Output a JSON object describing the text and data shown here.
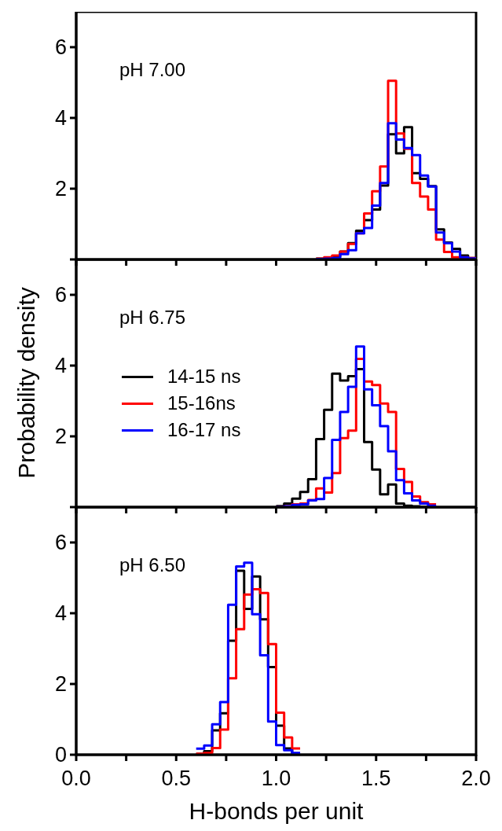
{
  "chart_data": [
    {
      "type": "histogram",
      "annotations": [
        "pH 7.00"
      ],
      "bins": [
        1.2,
        1.24,
        1.28,
        1.32,
        1.36,
        1.4,
        1.44,
        1.48,
        1.52,
        1.56,
        1.6,
        1.64,
        1.68,
        1.72,
        1.76,
        1.8,
        1.84,
        1.88,
        1.92,
        1.96,
        2.0
      ],
      "series": [
        {
          "color": "#000000",
          "values": [
            0.02,
            0.04,
            0.08,
            0.22,
            0.46,
            0.81,
            1.11,
            1.41,
            2.09,
            3.54,
            3.0,
            3.74,
            2.44,
            2.28,
            2.07,
            0.85,
            0.48,
            0.3,
            0.11,
            0.04
          ]
        },
        {
          "color": "#ff0000",
          "values": [
            0.02,
            0.06,
            0.11,
            0.22,
            0.44,
            0.74,
            1.3,
            1.93,
            2.63,
            5.05,
            3.56,
            3.13,
            2.16,
            1.78,
            1.41,
            0.56,
            0.21,
            0.06,
            0.06,
            0.04
          ]
        },
        {
          "color": "#0000ff",
          "values": [
            0.01,
            0.02,
            0.04,
            0.15,
            0.26,
            0.74,
            0.89,
            1.52,
            2.16,
            3.85,
            3.39,
            3.15,
            2.95,
            2.37,
            2.06,
            0.76,
            0.46,
            0.22,
            0.06,
            0.03
          ]
        }
      ],
      "xlim": [
        0,
        2
      ],
      "xticks": [
        {
          "value": 0,
          "label": null
        },
        {
          "value": 0.25,
          "label": null
        },
        {
          "value": 0.5,
          "label": null
        },
        {
          "value": 0.75,
          "label": null
        },
        {
          "value": 1,
          "label": null
        },
        {
          "value": 1.25,
          "label": null
        },
        {
          "value": 1.5,
          "label": null
        },
        {
          "value": 1.75,
          "label": null
        },
        {
          "value": 2,
          "label": null
        }
      ],
      "ylim": [
        0,
        7
      ],
      "yticks": [
        {
          "value": 0,
          "label": null
        },
        2,
        4,
        6
      ],
      "tick_labels": "y",
      "grid": false,
      "legend": false,
      "marker": "none",
      "line_style": "solid"
    },
    {
      "type": "histogram",
      "ylabel": "Probability density",
      "annotations": [
        "pH 6.75"
      ],
      "bins": [
        1.0,
        1.04,
        1.08,
        1.12,
        1.16,
        1.2,
        1.24,
        1.28,
        1.32,
        1.36,
        1.4,
        1.44,
        1.48,
        1.52,
        1.56,
        1.6,
        1.64,
        1.68,
        1.72,
        1.76,
        1.8
      ],
      "series": [
        {
          "name": "14-15 ns",
          "color": "#000000",
          "values": [
            0.03,
            0.1,
            0.24,
            0.43,
            0.79,
            1.92,
            2.75,
            3.77,
            3.58,
            3.7,
            3.9,
            1.84,
            1.06,
            0.36,
            0.64,
            0.1,
            0.04,
            0.02,
            0.01,
            0
          ]
        },
        {
          "name": "15-16ns",
          "color": "#ff0000",
          "values": [
            0,
            0.02,
            0.08,
            0.1,
            0.2,
            0.53,
            0.41,
            0.96,
            1.95,
            2.16,
            4.19,
            3.55,
            3.45,
            2.93,
            2.69,
            1.08,
            0.71,
            0.3,
            0.14,
            0.08
          ]
        },
        {
          "name": "16-17 ns",
          "color": "#0000ff",
          "values": [
            0,
            0.02,
            0.06,
            0.08,
            0.19,
            0.23,
            0.82,
            1.9,
            2.69,
            3.4,
            4.54,
            3.33,
            2.88,
            2.29,
            1.58,
            0.76,
            0.39,
            0.19,
            0.1,
            0.04
          ]
        }
      ],
      "xlim": [
        0,
        2
      ],
      "xticks": [
        {
          "value": 0,
          "label": null
        },
        {
          "value": 0.25,
          "label": null
        },
        {
          "value": 0.5,
          "label": null
        },
        {
          "value": 0.75,
          "label": null
        },
        {
          "value": 1,
          "label": null
        },
        {
          "value": 1.25,
          "label": null
        },
        {
          "value": 1.5,
          "label": null
        },
        {
          "value": 1.75,
          "label": null
        },
        {
          "value": 2,
          "label": null
        }
      ],
      "ylim": [
        0,
        7
      ],
      "yticks": [
        {
          "value": 0,
          "label": null
        },
        2,
        4,
        6
      ],
      "tick_labels": "y",
      "grid": false,
      "legend": "left",
      "marker": "none",
      "line_style": "solid"
    },
    {
      "type": "histogram",
      "xlabel": "H-bonds per unit",
      "annotations": [
        "pH 6.50"
      ],
      "bins": [
        0.6,
        0.64,
        0.68,
        0.72,
        0.76,
        0.8,
        0.84,
        0.88,
        0.92,
        0.96,
        1.0,
        1.04,
        1.08,
        1.12
      ],
      "series": [
        {
          "color": "#000000",
          "values": [
            0.02,
            0.1,
            0.69,
            1.17,
            3.22,
            5.2,
            4.12,
            5.04,
            3.83,
            2.48,
            0.82,
            0.18,
            0.04
          ]
        },
        {
          "color": "#ff0000",
          "values": [
            0.03,
            0.05,
            0.19,
            0.71,
            2.16,
            3.55,
            4.53,
            4.68,
            4.57,
            3.13,
            1.19,
            0.49,
            0.18
          ]
        },
        {
          "color": "#0000ff",
          "values": [
            0.17,
            0.26,
            0.86,
            1.49,
            4.24,
            5.32,
            5.43,
            3.97,
            2.81,
            0.94,
            0.27,
            0.13,
            0.05
          ]
        }
      ],
      "xlim": [
        0,
        2
      ],
      "xticks": [
        {
          "value": 0,
          "label": "0.0"
        },
        {
          "value": 0.25,
          "label": null
        },
        {
          "value": 0.5,
          "label": "0.5"
        },
        {
          "value": 0.75,
          "label": null
        },
        {
          "value": 1,
          "label": "1.0"
        },
        {
          "value": 1.25,
          "label": null
        },
        {
          "value": 1.5,
          "label": "1.5"
        },
        {
          "value": 1.75,
          "label": null
        },
        {
          "value": 2,
          "label": "2.0"
        }
      ],
      "ylim": [
        0,
        7
      ],
      "yticks": [
        0,
        2,
        4,
        6
      ],
      "grid": false,
      "legend": false,
      "marker": "none",
      "line_style": "solid"
    }
  ]
}
